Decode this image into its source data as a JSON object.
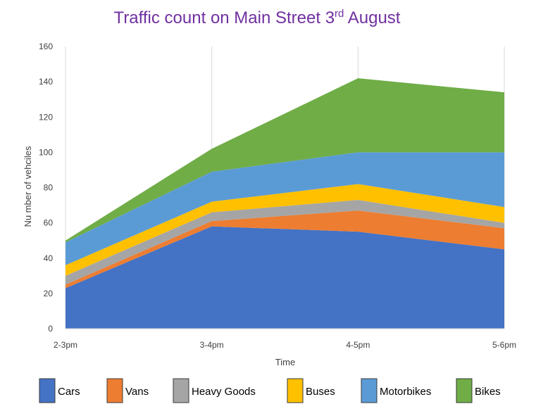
{
  "chart_data": {
    "type": "area",
    "stacked": true,
    "title_main": "Traffic count on Main Street 3",
    "title_sup": "rd",
    "title_end": " August",
    "xlabel": "Time",
    "ylabel": "Nu mber of vehciles",
    "categories": [
      "2-3pm",
      "3-4pm",
      "4-5pm",
      "5-6pm"
    ],
    "ylim": [
      0,
      160
    ],
    "yticks": [
      0,
      20,
      40,
      60,
      80,
      100,
      120,
      140,
      160
    ],
    "grid": "vertical",
    "legend_position": "bottom",
    "series": [
      {
        "name": "Cars",
        "color": "#4472c4",
        "values": [
          23,
          58,
          55,
          45
        ]
      },
      {
        "name": "Vans",
        "color": "#ed7d31",
        "values": [
          2,
          3,
          12,
          12
        ]
      },
      {
        "name": "Heavy Goods",
        "color": "#a5a5a5",
        "values": [
          5,
          5,
          6,
          3
        ]
      },
      {
        "name": "Buses",
        "color": "#ffc000",
        "values": [
          6,
          6,
          9,
          9
        ]
      },
      {
        "name": "Motorbikes",
        "color": "#5b9bd5",
        "values": [
          13,
          17,
          18,
          31
        ]
      },
      {
        "name": "Bikes",
        "color": "#70ad47",
        "values": [
          1,
          13,
          42,
          34
        ]
      }
    ]
  }
}
